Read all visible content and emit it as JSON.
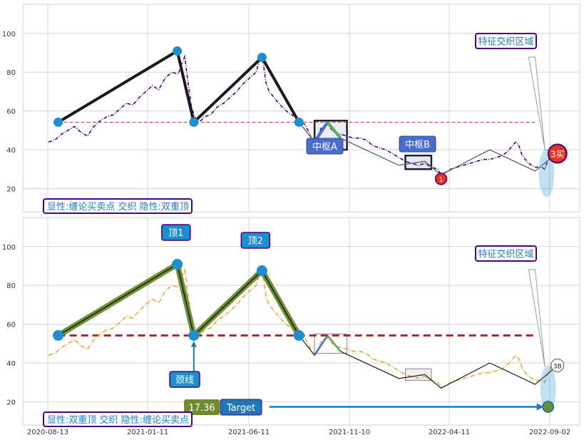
{
  "colors": {
    "grid": "#d3d3d3",
    "frame": "#cfcfcf",
    "price_top": "#4b0082",
    "price_bottom": "#e8a838",
    "neckline_top": "#c0392b",
    "neckline_bottom": "#a52a2a",
    "stroke_line": "#1a1a1a",
    "pivot_dot": "#1f8ecf",
    "olive": "#6f9135",
    "box_blue": "#4a6cc9",
    "text_teal": "#1f7fb5",
    "label_border": "#4b0082",
    "buy_red": "#e8321a",
    "target_blue": "#1f78b4",
    "target_olive": "#6f8b2b"
  },
  "chart_data": [
    {
      "type": "line",
      "panel": "top",
      "ylim": [
        8,
        115
      ],
      "yticks": [
        20,
        40,
        60,
        80,
        100
      ],
      "series": [
        {
          "role": "price",
          "style": "dash-dot",
          "points": [
            [
              0,
              44
            ],
            [
              2,
              45
            ],
            [
              4,
              48
            ],
            [
              6,
              50
            ],
            [
              8,
              52
            ],
            [
              10,
              49
            ],
            [
              12,
              47
            ],
            [
              14,
              52
            ],
            [
              16,
              55
            ],
            [
              18,
              57
            ],
            [
              20,
              58
            ],
            [
              22,
              61
            ],
            [
              24,
              64
            ],
            [
              26,
              63
            ],
            [
              28,
              67
            ],
            [
              30,
              70
            ],
            [
              32,
              73
            ],
            [
              34,
              71
            ],
            [
              36,
              77
            ],
            [
              38,
              80
            ],
            [
              40,
              79
            ],
            [
              41,
              84
            ],
            [
              42,
              88
            ],
            [
              43,
              75
            ],
            [
              44,
              63
            ],
            [
              45,
              57
            ],
            [
              46,
              55
            ],
            [
              47,
              55
            ],
            [
              48,
              57
            ],
            [
              50,
              58
            ],
            [
              52,
              62
            ],
            [
              54,
              64
            ],
            [
              56,
              67
            ],
            [
              58,
              70
            ],
            [
              60,
              74
            ],
            [
              62,
              77
            ],
            [
              64,
              80
            ],
            [
              65,
              86
            ],
            [
              66,
              87
            ],
            [
              67,
              75
            ],
            [
              68,
              70
            ],
            [
              70,
              66
            ],
            [
              72,
              62
            ],
            [
              74,
              59
            ],
            [
              76,
              57
            ],
            [
              78,
              54
            ],
            [
              79,
              53
            ],
            [
              80,
              50
            ],
            [
              81,
              46
            ],
            [
              82,
              44
            ],
            [
              83,
              47
            ],
            [
              84,
              51
            ],
            [
              86,
              53
            ],
            [
              88,
              49
            ],
            [
              90,
              48
            ],
            [
              92,
              47
            ],
            [
              94,
              46
            ],
            [
              96,
              46
            ],
            [
              98,
              45
            ],
            [
              100,
              42
            ],
            [
              102,
              41
            ],
            [
              104,
              40
            ],
            [
              106,
              38
            ],
            [
              108,
              36
            ],
            [
              110,
              34
            ],
            [
              112,
              33
            ],
            [
              114,
              32
            ],
            [
              116,
              33
            ],
            [
              118,
              31
            ],
            [
              120,
              30
            ],
            [
              121,
              27
            ],
            [
              122,
              28
            ],
            [
              124,
              30
            ],
            [
              126,
              31
            ],
            [
              128,
              32
            ],
            [
              130,
              33
            ],
            [
              132,
              34
            ],
            [
              134,
              35
            ],
            [
              136,
              35
            ],
            [
              138,
              36
            ],
            [
              140,
              37
            ],
            [
              142,
              40
            ],
            [
              144,
              44
            ],
            [
              145,
              42
            ],
            [
              146,
              37
            ],
            [
              148,
              33
            ],
            [
              150,
              31
            ],
            [
              152,
              31
            ],
            [
              153,
              30
            ],
            [
              154,
              35
            ],
            [
              155,
              38
            ],
            [
              156,
              42
            ]
          ]
        },
        {
          "role": "strokes",
          "points": [
            [
              3,
              54.2
            ],
            [
              39.7,
              90.9
            ],
            [
              44.8,
              54.2
            ],
            [
              65.8,
              87.6
            ],
            [
              77.2,
              54.2
            ],
            [
              82,
              44
            ],
            [
              86,
              54.2
            ],
            [
              90,
              46
            ],
            [
              108,
              32
            ],
            [
              116,
              34
            ],
            [
              121,
              27
            ],
            [
              136,
              40
            ],
            [
              150,
              29
            ],
            [
              155,
              36
            ],
            [
              156,
              38
            ]
          ]
        },
        {
          "role": "neckline",
          "y": 54.2,
          "x_range": [
            3,
            150
          ]
        }
      ],
      "pivots": [
        [
          3,
          54.2
        ],
        [
          39.7,
          90.9
        ],
        [
          44.8,
          54.2
        ],
        [
          65.8,
          87.6
        ],
        [
          77.2,
          54.2
        ]
      ],
      "zones": [
        {
          "name": "中枢A",
          "x_range": [
            82,
            92
          ],
          "y_range": [
            40,
            55
          ]
        },
        {
          "name": "中枢B",
          "x_range": [
            110,
            118
          ],
          "y_range": [
            30,
            37
          ]
        }
      ],
      "buy_points": [
        {
          "label": "1",
          "x": 121,
          "y": 25
        },
        {
          "label": "3买",
          "x": 156,
          "y": 38
        }
      ]
    },
    {
      "type": "line",
      "panel": "bottom",
      "ylim": [
        8,
        115
      ],
      "yticks": [
        20,
        40,
        60,
        80,
        100
      ],
      "x_ticks": [
        "2020-08-13",
        "2021-01-11",
        "2021-06-11",
        "2021-11-10",
        "2022-04-11",
        "2022-09-02"
      ],
      "series": [
        {
          "role": "price",
          "style": "dash-dot",
          "points": [
            [
              0,
              44
            ],
            [
              2,
              45
            ],
            [
              4,
              48
            ],
            [
              6,
              50
            ],
            [
              8,
              52
            ],
            [
              10,
              49
            ],
            [
              12,
              47
            ],
            [
              14,
              52
            ],
            [
              16,
              55
            ],
            [
              18,
              57
            ],
            [
              20,
              58
            ],
            [
              22,
              61
            ],
            [
              24,
              64
            ],
            [
              26,
              63
            ],
            [
              28,
              67
            ],
            [
              30,
              70
            ],
            [
              32,
              73
            ],
            [
              34,
              71
            ],
            [
              36,
              77
            ],
            [
              38,
              80
            ],
            [
              40,
              79
            ],
            [
              41,
              84
            ],
            [
              42,
              88
            ],
            [
              43,
              75
            ],
            [
              44,
              63
            ],
            [
              45,
              57
            ],
            [
              46,
              55
            ],
            [
              47,
              55
            ],
            [
              48,
              57
            ],
            [
              50,
              58
            ],
            [
              52,
              62
            ],
            [
              54,
              64
            ],
            [
              56,
              67
            ],
            [
              58,
              70
            ],
            [
              60,
              74
            ],
            [
              62,
              77
            ],
            [
              64,
              80
            ],
            [
              65,
              86
            ],
            [
              66,
              87
            ],
            [
              67,
              75
            ],
            [
              68,
              70
            ],
            [
              70,
              66
            ],
            [
              72,
              62
            ],
            [
              74,
              59
            ],
            [
              76,
              57
            ],
            [
              78,
              54
            ],
            [
              79,
              53
            ],
            [
              80,
              50
            ],
            [
              81,
              46
            ],
            [
              82,
              44
            ],
            [
              83,
              47
            ],
            [
              84,
              51
            ],
            [
              86,
              53
            ],
            [
              88,
              49
            ],
            [
              90,
              48
            ],
            [
              92,
              47
            ],
            [
              94,
              46
            ],
            [
              96,
              46
            ],
            [
              98,
              45
            ],
            [
              100,
              42
            ],
            [
              102,
              41
            ],
            [
              104,
              40
            ],
            [
              106,
              38
            ],
            [
              108,
              36
            ],
            [
              110,
              34
            ],
            [
              112,
              33
            ],
            [
              114,
              32
            ],
            [
              116,
              33
            ],
            [
              118,
              31
            ],
            [
              120,
              30
            ],
            [
              121,
              27
            ],
            [
              122,
              28
            ],
            [
              124,
              30
            ],
            [
              126,
              31
            ],
            [
              128,
              32
            ],
            [
              130,
              33
            ],
            [
              132,
              34
            ],
            [
              134,
              35
            ],
            [
              136,
              35
            ],
            [
              138,
              36
            ],
            [
              140,
              37
            ],
            [
              142,
              40
            ],
            [
              144,
              44
            ],
            [
              145,
              42
            ],
            [
              146,
              37
            ],
            [
              148,
              33
            ],
            [
              150,
              31
            ],
            [
              152,
              31
            ],
            [
              153,
              30
            ],
            [
              154,
              35
            ],
            [
              155,
              38
            ],
            [
              156,
              42
            ]
          ]
        },
        {
          "role": "pattern",
          "points": [
            [
              3,
              54.2
            ],
            [
              39.7,
              90.9
            ],
            [
              44.8,
              54.2
            ],
            [
              65.8,
              87.6
            ],
            [
              77.2,
              54.2
            ]
          ]
        },
        {
          "role": "strokes",
          "points": [
            [
              77.2,
              54.2
            ],
            [
              82,
              44
            ],
            [
              86,
              54.2
            ],
            [
              90,
              46
            ],
            [
              108,
              32
            ],
            [
              116,
              34
            ],
            [
              121,
              27
            ],
            [
              136,
              40
            ],
            [
              150,
              29
            ],
            [
              155,
              36
            ],
            [
              156,
              38
            ]
          ]
        },
        {
          "role": "neckline",
          "y": 54.2,
          "x_range": [
            3,
            150
          ]
        }
      ],
      "pivots": [
        [
          3,
          54.2
        ],
        [
          39.7,
          90.9
        ],
        [
          44.8,
          54.2
        ],
        [
          65.8,
          87.6
        ],
        [
          77.2,
          54.2
        ]
      ],
      "target": {
        "value": "17.36",
        "label": "Target",
        "x": 154,
        "y": 17.36
      },
      "callouts": {
        "top1": "顶1",
        "top2": "顶2",
        "neck": "颈线",
        "buy3": "3B"
      }
    }
  ],
  "top_panel": {
    "legend": "显性:缠论买卖点 交织 隐性:双重顶",
    "zone_label": "特征交织区域",
    "center_a": "中枢A",
    "center_b": "中枢B",
    "buy1": "1",
    "buy3": "3买"
  },
  "bottom_panel": {
    "legend": "显性:双重顶 交织 隐性:缠论买卖点",
    "zone_label": "特征交织区域"
  }
}
